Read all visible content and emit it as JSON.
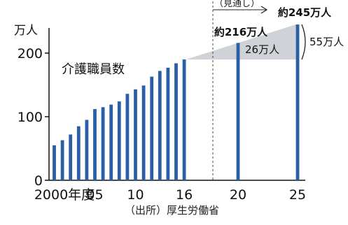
{
  "chart_data": {
    "type": "bar",
    "ylabel": "万人",
    "ylim": [
      0,
      200
    ],
    "y_ticks": [
      "0",
      "100",
      "200"
    ],
    "x_tick_labels": [
      {
        "year": 2000,
        "label": "2000年度"
      },
      {
        "year": 2005,
        "label": "05"
      },
      {
        "year": 2010,
        "label": "10"
      },
      {
        "year": 2016,
        "label": "16"
      },
      {
        "year": 2020,
        "label": "20"
      },
      {
        "year": 2025,
        "label": "25"
      }
    ],
    "series_label": "介護職員数",
    "source": "（出所）厚生労働省",
    "projection_label": "（見通し）",
    "x": [
      2000,
      2001,
      2002,
      2003,
      2004,
      2005,
      2006,
      2007,
      2008,
      2009,
      2010,
      2011,
      2012,
      2013,
      2014,
      2015,
      2016,
      2020,
      2025
    ],
    "values": [
      55,
      63,
      72,
      85,
      95,
      112,
      115,
      119,
      124,
      136,
      143,
      149,
      163,
      172,
      177,
      184,
      190,
      216,
      245
    ],
    "projected_from": 2020,
    "annotations": [
      {
        "year": 2020,
        "label": "約216万人"
      },
      {
        "year": 2025,
        "label": "約245万人"
      }
    ],
    "gaps": [
      {
        "from_year": 2016,
        "to_year": 2020,
        "label": "26万人"
      },
      {
        "from_year": 2016,
        "to_year": 2025,
        "label": "55万人"
      }
    ],
    "colors": {
      "bar": "#2a5fa8",
      "gap": "#cfd3d8",
      "axis": "#111111"
    }
  }
}
